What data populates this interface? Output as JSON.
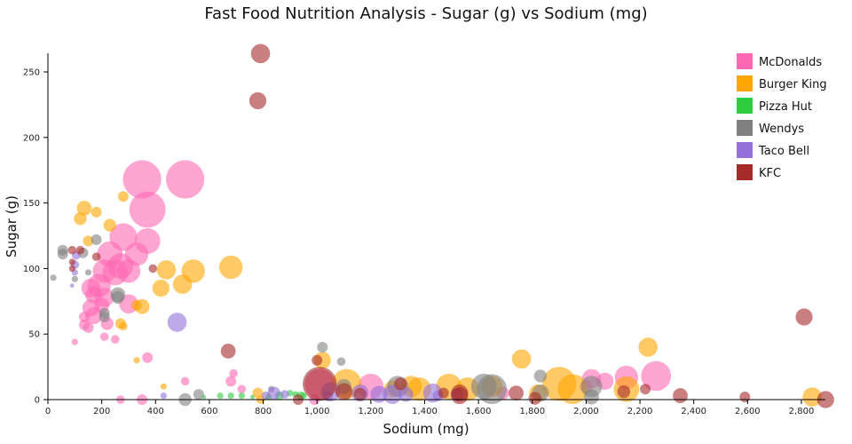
{
  "chart_data": {
    "type": "scatter",
    "title": "Fast Food Nutrition Analysis - Sugar (g) vs Sodium (mg)",
    "xlabel": "Sodium (mg)",
    "ylabel": "Sugar (g)",
    "xlim": [
      0,
      2890
    ],
    "ylim": [
      0,
      264
    ],
    "xticks": [
      0,
      200,
      400,
      600,
      800,
      1000,
      1200,
      1400,
      1600,
      1800,
      2000,
      2200,
      2400,
      2600,
      2800
    ],
    "xtick_labels": [
      "0",
      "200",
      "400",
      "600",
      "800",
      "1,000",
      "1,200",
      "1,400",
      "1,600",
      "1,800",
      "2,000",
      "2,200",
      "2,400",
      "2,600",
      "2,800"
    ],
    "yticks": [
      0,
      50,
      100,
      150,
      200,
      250
    ],
    "ytick_labels": [
      "0",
      "50",
      "100",
      "150",
      "200",
      "250"
    ],
    "grid": false,
    "legend_position": "top-right",
    "point_format": [
      "sodium_mg",
      "sugar_g",
      "relative_size"
    ],
    "series": [
      {
        "name": "McDonalds",
        "color": "#ff69b4",
        "points": [
          [
            350,
            168,
            18
          ],
          [
            510,
            168,
            18
          ],
          [
            370,
            145,
            17
          ],
          [
            280,
            124,
            13
          ],
          [
            370,
            121,
            12
          ],
          [
            230,
            111,
            12
          ],
          [
            330,
            111,
            11
          ],
          [
            270,
            102,
            12
          ],
          [
            300,
            98,
            11
          ],
          [
            210,
            98,
            11
          ],
          [
            250,
            97,
            12
          ],
          [
            190,
            87,
            11
          ],
          [
            160,
            85,
            9
          ],
          [
            170,
            80,
            8
          ],
          [
            210,
            78,
            9
          ],
          [
            300,
            73,
            9
          ],
          [
            160,
            70,
            8
          ],
          [
            200,
            72,
            7
          ],
          [
            170,
            64,
            8
          ],
          [
            135,
            63,
            5
          ],
          [
            135,
            57,
            5
          ],
          [
            150,
            55,
            5
          ],
          [
            220,
            58,
            6
          ],
          [
            210,
            48,
            4
          ],
          [
            250,
            46,
            4
          ],
          [
            100,
            44,
            3
          ],
          [
            370,
            32,
            5
          ],
          [
            510,
            14,
            4
          ],
          [
            690,
            20,
            4
          ],
          [
            680,
            14,
            5
          ],
          [
            1010,
            12,
            14
          ],
          [
            1200,
            10,
            12
          ],
          [
            2020,
            16,
            9
          ],
          [
            2150,
            17,
            11
          ],
          [
            2260,
            18,
            14
          ],
          [
            2070,
            14,
            8
          ],
          [
            1690,
            5,
            6
          ],
          [
            990,
            0,
            5
          ],
          [
            270,
            0,
            4
          ],
          [
            350,
            0,
            5
          ],
          [
            720,
            8,
            4
          ],
          [
            2000,
            10,
            6
          ]
        ]
      },
      {
        "name": "Burger King",
        "color": "#ffa500",
        "points": [
          [
            280,
            155,
            5
          ],
          [
            135,
            146,
            7
          ],
          [
            120,
            138,
            6
          ],
          [
            180,
            143,
            5
          ],
          [
            230,
            133,
            6
          ],
          [
            150,
            121,
            5
          ],
          [
            440,
            99,
            9
          ],
          [
            540,
            98,
            11
          ],
          [
            680,
            101,
            11
          ],
          [
            420,
            85,
            8
          ],
          [
            500,
            88,
            9
          ],
          [
            350,
            71,
            7
          ],
          [
            330,
            72,
            5
          ],
          [
            270,
            58,
            5
          ],
          [
            280,
            56,
            4
          ],
          [
            330,
            30,
            3
          ],
          [
            780,
            5,
            5
          ],
          [
            1020,
            30,
            8
          ],
          [
            1110,
            12,
            14
          ],
          [
            1900,
            12,
            16
          ],
          [
            1950,
            8,
            14
          ],
          [
            1760,
            31,
            9
          ],
          [
            2230,
            40,
            9
          ],
          [
            2150,
            8,
            12
          ],
          [
            1490,
            10,
            12
          ],
          [
            1560,
            8,
            11
          ],
          [
            1650,
            10,
            10
          ],
          [
            1380,
            8,
            11
          ],
          [
            1820,
            5,
            8
          ],
          [
            2840,
            2,
            9
          ],
          [
            1350,
            10,
            10
          ],
          [
            430,
            10,
            3
          ],
          [
            790,
            0,
            4
          ],
          [
            1280,
            8,
            8
          ]
        ]
      },
      {
        "name": "Pizza Hut",
        "color": "#2ecc40",
        "points": [
          [
            640,
            3,
            3
          ],
          [
            680,
            3,
            3
          ],
          [
            720,
            3,
            3
          ],
          [
            760,
            2,
            2
          ],
          [
            860,
            3,
            4
          ],
          [
            920,
            4,
            3
          ],
          [
            940,
            3,
            4
          ],
          [
            580,
            2,
            2
          ],
          [
            820,
            2,
            3
          ],
          [
            900,
            5,
            3
          ],
          [
            950,
            3,
            3
          ]
        ]
      },
      {
        "name": "Wendys",
        "color": "#808080",
        "points": [
          [
            55,
            114,
            5
          ],
          [
            55,
            111,
            5
          ],
          [
            130,
            112,
            5
          ],
          [
            180,
            122,
            5
          ],
          [
            260,
            80,
            7
          ],
          [
            260,
            78,
            6
          ],
          [
            210,
            66,
            5
          ],
          [
            210,
            63,
            5
          ],
          [
            20,
            93,
            3
          ],
          [
            100,
            92,
            3
          ],
          [
            150,
            97,
            3
          ],
          [
            1020,
            40,
            5
          ],
          [
            1090,
            29,
            4
          ],
          [
            510,
            0,
            6
          ],
          [
            560,
            4,
            5
          ],
          [
            1830,
            18,
            6
          ],
          [
            1830,
            5,
            8
          ],
          [
            1650,
            8,
            14
          ],
          [
            1620,
            10,
            12
          ],
          [
            2020,
            10,
            10
          ],
          [
            2020,
            2,
            7
          ],
          [
            1300,
            10,
            10
          ],
          [
            1100,
            10,
            7
          ],
          [
            830,
            8,
            3
          ]
        ]
      },
      {
        "name": "Taco Bell",
        "color": "#9370db",
        "points": [
          [
            480,
            59,
            9
          ],
          [
            105,
            110,
            4
          ],
          [
            100,
            103,
            4
          ],
          [
            100,
            97,
            3
          ],
          [
            90,
            87,
            2
          ],
          [
            430,
            3,
            3
          ],
          [
            810,
            3,
            4
          ],
          [
            840,
            5,
            6
          ],
          [
            1050,
            6,
            9
          ],
          [
            1160,
            5,
            8
          ],
          [
            1230,
            4,
            8
          ],
          [
            1280,
            4,
            9
          ],
          [
            1330,
            4,
            7
          ],
          [
            1430,
            5,
            9
          ],
          [
            1520,
            4,
            6
          ],
          [
            1450,
            3,
            5
          ],
          [
            1040,
            3,
            5
          ],
          [
            880,
            4,
            4
          ]
        ]
      },
      {
        "name": "KFC",
        "color": "#a52a2a",
        "points": [
          [
            790,
            264,
            9
          ],
          [
            780,
            228,
            8
          ],
          [
            90,
            114,
            4
          ],
          [
            120,
            114,
            4
          ],
          [
            90,
            105,
            3
          ],
          [
            90,
            100,
            3
          ],
          [
            180,
            109,
            4
          ],
          [
            390,
            100,
            4
          ],
          [
            670,
            37,
            7
          ],
          [
            1010,
            12,
            16
          ],
          [
            1000,
            30,
            5
          ],
          [
            1100,
            6,
            8
          ],
          [
            1160,
            4,
            6
          ],
          [
            1310,
            12,
            6
          ],
          [
            1530,
            5,
            8
          ],
          [
            1530,
            3,
            8
          ],
          [
            1470,
            5,
            5
          ],
          [
            1740,
            5,
            7
          ],
          [
            1810,
            1,
            6
          ],
          [
            2140,
            6,
            6
          ],
          [
            2220,
            8,
            5
          ],
          [
            2350,
            3,
            7
          ],
          [
            2590,
            2,
            5
          ],
          [
            2810,
            63,
            8
          ],
          [
            2890,
            0,
            8
          ],
          [
            930,
            0,
            5
          ]
        ]
      }
    ]
  }
}
